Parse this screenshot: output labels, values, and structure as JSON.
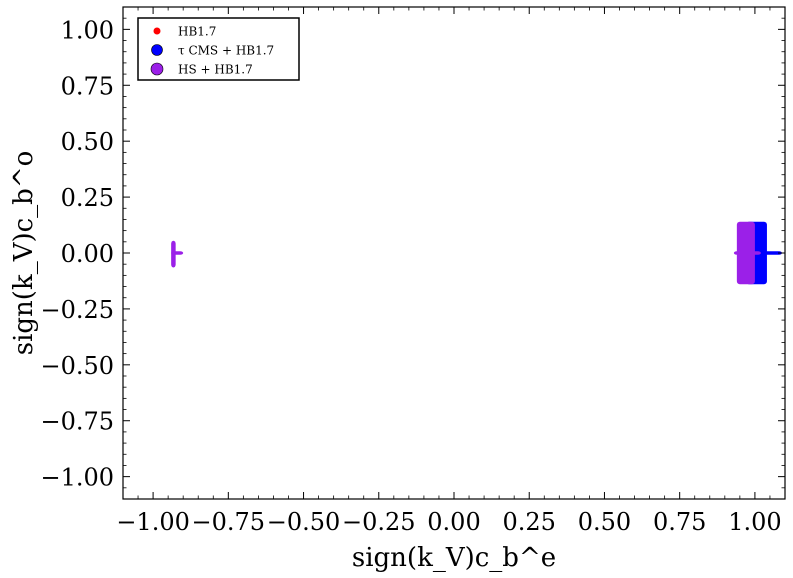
{
  "chart_data": {
    "type": "scatter",
    "xlabel": "sign(k_V)c_b^e",
    "ylabel": "sign(k_V)c_b^o",
    "xlim": [
      -1.1,
      1.1
    ],
    "ylim": [
      -1.1,
      1.1
    ],
    "xticks": [
      -1.0,
      -0.75,
      -0.5,
      -0.25,
      0.0,
      0.25,
      0.5,
      0.75,
      1.0
    ],
    "xtick_labels": [
      "−1.00",
      "−0.75",
      "−0.50",
      "−0.25",
      "0.00",
      "0.25",
      "0.50",
      "0.75",
      "1.00"
    ],
    "yticks": [
      1.0,
      0.75,
      0.5,
      0.25,
      0.0,
      -0.25,
      -0.5,
      -0.75,
      -1.0
    ],
    "ytick_labels": [
      "1.00",
      "0.75",
      "0.50",
      "0.25",
      "0.00",
      "−0.25",
      "−0.50",
      "−0.75",
      "−1.00"
    ],
    "grid": false,
    "legend_position": "top-left",
    "series": [
      {
        "name": "HB1.7",
        "color": "#ff0000",
        "regions": []
      },
      {
        "name": "τ CMS + HB1.7",
        "color": "#0000ff",
        "regions": [
          {
            "x_min": 0.97,
            "x_max": 1.04,
            "y_min": -0.14,
            "y_max": 0.14
          },
          {
            "x_min": 1.03,
            "x_max": 1.09,
            "y_min": -0.008,
            "y_max": 0.008
          }
        ]
      },
      {
        "name": "HS + HB1.7",
        "color": "#9b20e8",
        "regions": [
          {
            "x_min": 0.94,
            "x_max": 1.0,
            "y_min": -0.14,
            "y_max": 0.14
          },
          {
            "x_min": 0.93,
            "x_max": 1.02,
            "y_min": -0.008,
            "y_max": 0.008
          },
          {
            "x_min": -0.94,
            "x_max": -0.925,
            "y_min": -0.065,
            "y_max": 0.055
          },
          {
            "x_min": -0.94,
            "x_max": -0.9,
            "y_min": -0.008,
            "y_max": 0.008
          }
        ]
      }
    ]
  }
}
